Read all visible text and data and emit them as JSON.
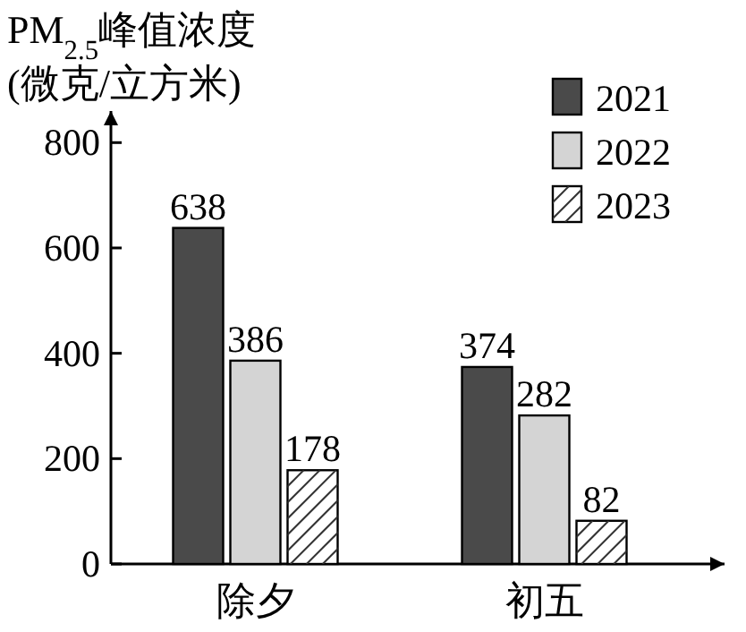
{
  "chart_data": {
    "type": "bar",
    "ylabel": "PM$_{2.5}$峰值浓度\n(微克/立方米)",
    "categories": [
      "除夕",
      "初五"
    ],
    "series": [
      {
        "name": "2021",
        "color": "#4a4a4a",
        "values": [
          638,
          374
        ]
      },
      {
        "name": "2022",
        "color": "#d4d4d4",
        "values": [
          386,
          282
        ]
      },
      {
        "name": "2023",
        "color": "#ffffff",
        "values": [
          178,
          82
        ]
      }
    ],
    "ylim": [
      0,
      860
    ],
    "yticks": [
      0,
      200,
      400,
      600,
      800
    ],
    "data_labels": true,
    "legend": "top right",
    "grid": false
  }
}
